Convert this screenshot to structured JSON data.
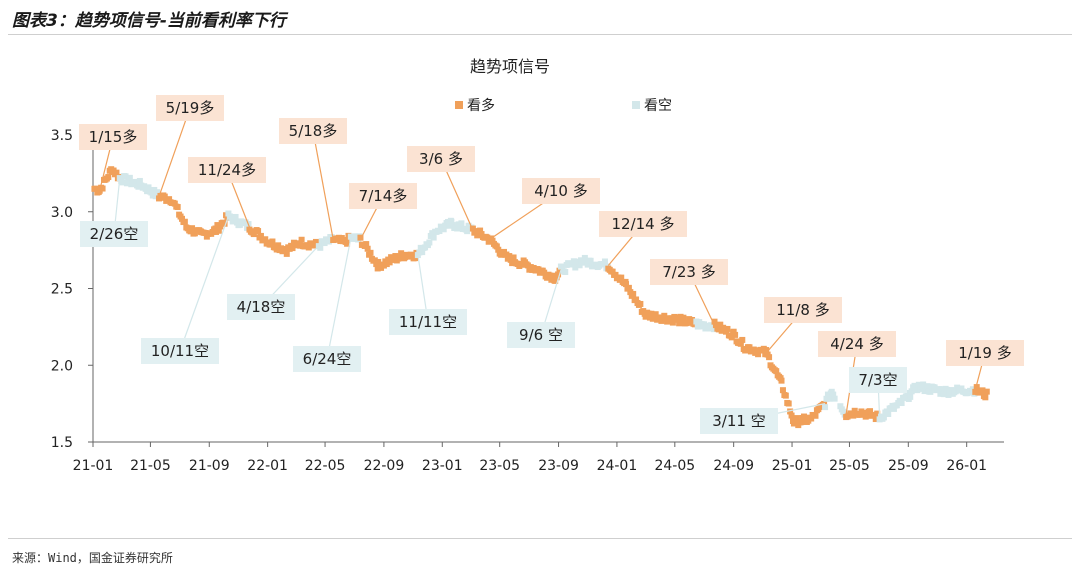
{
  "figure_title": "图表3：趋势项信号-当前看利率下行",
  "source": "来源：Wind，国金证券研究所",
  "chart_data": {
    "type": "scatter",
    "title": "趋势项信号",
    "xlabel": "",
    "ylabel": "",
    "ylim": [
      1.5,
      3.5
    ],
    "yticks": [
      "1.5",
      "2.0",
      "2.5",
      "3.0",
      "3.5"
    ],
    "xticks": [
      "21-01",
      "21-05",
      "21-09",
      "22-01",
      "22-05",
      "22-09",
      "23-01",
      "23-05",
      "23-09",
      "24-01",
      "24-05",
      "24-09",
      "25-01",
      "25-05",
      "25-09",
      "26-01"
    ],
    "legend_position": "top",
    "colors": {
      "long": "#F0A05A",
      "short": "#D3E7EA",
      "long_label_bg": "#FBE3D3",
      "short_label_bg": "#E2F0F2"
    },
    "series": [
      {
        "name": "看多",
        "color": "#F0A05A"
      },
      {
        "name": "看空",
        "color": "#D3E7EA"
      }
    ],
    "anchors": [
      [
        "2021-01-04",
        3.15
      ],
      [
        "2021-01-15",
        3.14
      ],
      [
        "2021-02-10",
        3.28
      ],
      [
        "2021-02-26",
        3.22
      ],
      [
        "2021-04-15",
        3.17
      ],
      [
        "2021-05-19",
        3.1
      ],
      [
        "2021-06-15",
        3.08
      ],
      [
        "2021-07-15",
        2.9
      ],
      [
        "2021-08-15",
        2.85
      ],
      [
        "2021-09-15",
        2.88
      ],
      [
        "2021-10-11",
        2.97
      ],
      [
        "2021-11-24",
        2.9
      ],
      [
        "2022-01-05",
        2.8
      ],
      [
        "2022-02-10",
        2.75
      ],
      [
        "2022-03-10",
        2.8
      ],
      [
        "2022-04-18",
        2.78
      ],
      [
        "2022-05-18",
        2.82
      ],
      [
        "2022-06-10",
        2.8
      ],
      [
        "2022-06-24",
        2.83
      ],
      [
        "2022-07-14",
        2.82
      ],
      [
        "2022-08-20",
        2.65
      ],
      [
        "2022-10-15",
        2.72
      ],
      [
        "2022-11-11",
        2.72
      ],
      [
        "2022-12-20",
        2.88
      ],
      [
        "2023-01-20",
        2.92
      ],
      [
        "2023-03-06",
        2.88
      ],
      [
        "2023-04-10",
        2.82
      ],
      [
        "2023-05-15",
        2.7
      ],
      [
        "2023-07-15",
        2.63
      ],
      [
        "2023-08-25",
        2.57
      ],
      [
        "2023-09-06",
        2.62
      ],
      [
        "2023-10-20",
        2.68
      ],
      [
        "2023-12-14",
        2.65
      ],
      [
        "2024-01-20",
        2.52
      ],
      [
        "2024-03-01",
        2.33
      ],
      [
        "2024-05-01",
        2.3
      ],
      [
        "2024-07-01",
        2.26
      ],
      [
        "2024-07-23",
        2.26
      ],
      [
        "2024-09-01",
        2.2
      ],
      [
        "2024-09-25",
        2.12
      ],
      [
        "2024-11-08",
        2.08
      ],
      [
        "2024-12-10",
        1.88
      ],
      [
        "2025-01-05",
        1.63
      ],
      [
        "2025-02-10",
        1.65
      ],
      [
        "2025-03-11",
        1.75
      ],
      [
        "2025-03-25",
        1.83
      ],
      [
        "2025-04-24",
        1.68
      ],
      [
        "2025-05-20",
        1.7
      ],
      [
        "2025-07-03",
        1.66
      ],
      [
        "2025-08-15",
        1.75
      ],
      [
        "2025-09-20",
        1.86
      ],
      [
        "2025-11-15",
        1.83
      ],
      [
        "2026-01-19",
        1.84
      ],
      [
        "2026-02-15",
        1.8
      ]
    ],
    "signals": [
      {
        "date": "2021-01-15",
        "signal": "看多"
      },
      {
        "date": "2021-02-26",
        "signal": "看空"
      },
      {
        "date": "2021-05-19",
        "signal": "看多"
      },
      {
        "date": "2021-10-11",
        "signal": "看空"
      },
      {
        "date": "2021-11-24",
        "signal": "看多"
      },
      {
        "date": "2022-04-18",
        "signal": "看空"
      },
      {
        "date": "2022-05-18",
        "signal": "看多"
      },
      {
        "date": "2022-06-24",
        "signal": "看空"
      },
      {
        "date": "2022-07-14",
        "signal": "看多"
      },
      {
        "date": "2022-11-11",
        "signal": "看空"
      },
      {
        "date": "2023-03-06",
        "signal": "看多"
      },
      {
        "date": "2023-09-06",
        "signal": "看空"
      },
      {
        "date": "2023-12-14",
        "signal": "看多"
      },
      {
        "date": "2024-07-23",
        "signal": "看多"
      },
      {
        "date": "2024-11-08",
        "signal": "看多"
      },
      {
        "date": "2025-03-11",
        "signal": "看空"
      },
      {
        "date": "2025-04-24",
        "signal": "看多"
      },
      {
        "date": "2025-07-03",
        "signal": "看空"
      },
      {
        "date": "2026-01-19",
        "signal": "看多"
      }
    ],
    "short_periods": [
      [
        "2021-02-26",
        "2021-05-19"
      ],
      [
        "2021-10-11",
        "2021-11-24"
      ],
      [
        "2022-04-18",
        "2022-05-18"
      ],
      [
        "2022-06-24",
        "2022-07-14"
      ],
      [
        "2022-11-11",
        "2023-03-06"
      ],
      [
        "2023-09-06",
        "2023-12-14"
      ],
      [
        "2024-06-15",
        "2024-07-23"
      ],
      [
        "2025-03-11",
        "2025-04-24"
      ],
      [
        "2025-07-03",
        "2026-01-19"
      ]
    ],
    "annotations": [
      {
        "text": "1/15多",
        "kind": "long",
        "date": "2021-01-15",
        "value": 3.14
      },
      {
        "text": "2/26空",
        "kind": "short",
        "date": "2021-02-26",
        "value": 3.22
      },
      {
        "text": "5/19多",
        "kind": "long",
        "date": "2021-05-19",
        "value": 3.1
      },
      {
        "text": "10/11空",
        "kind": "short",
        "date": "2021-10-11",
        "value": 2.97
      },
      {
        "text": "11/24多",
        "kind": "long",
        "date": "2021-11-24",
        "value": 2.9
      },
      {
        "text": "4/18空",
        "kind": "short",
        "date": "2022-04-18",
        "value": 2.78
      },
      {
        "text": "5/18多",
        "kind": "long",
        "date": "2022-05-18",
        "value": 2.82
      },
      {
        "text": "6/24空",
        "kind": "short",
        "date": "2022-06-24",
        "value": 2.83
      },
      {
        "text": "7/14多",
        "kind": "long",
        "date": "2022-07-14",
        "value": 2.82
      },
      {
        "text": "11/11空",
        "kind": "short",
        "date": "2022-11-11",
        "value": 2.72
      },
      {
        "text": "3/6 多",
        "kind": "long",
        "date": "2023-03-06",
        "value": 2.88
      },
      {
        "text": "4/10 多",
        "kind": "long",
        "date": "2023-04-10",
        "value": 2.82
      },
      {
        "text": "9/6 空",
        "kind": "short",
        "date": "2023-09-06",
        "value": 2.62
      },
      {
        "text": "12/14 多",
        "kind": "long",
        "date": "2023-12-14",
        "value": 2.65
      },
      {
        "text": "7/23 多",
        "kind": "long",
        "date": "2024-07-23",
        "value": 2.26
      },
      {
        "text": "11/8 多",
        "kind": "long",
        "date": "2024-11-08",
        "value": 2.08
      },
      {
        "text": "3/11 空",
        "kind": "short",
        "date": "2025-03-11",
        "value": 1.75
      },
      {
        "text": "4/24 多",
        "kind": "long",
        "date": "2025-04-24",
        "value": 1.68
      },
      {
        "text": "7/3空",
        "kind": "short",
        "date": "2025-07-03",
        "value": 1.66
      },
      {
        "text": "1/19 多",
        "kind": "long",
        "date": "2026-01-19",
        "value": 1.84
      }
    ]
  }
}
